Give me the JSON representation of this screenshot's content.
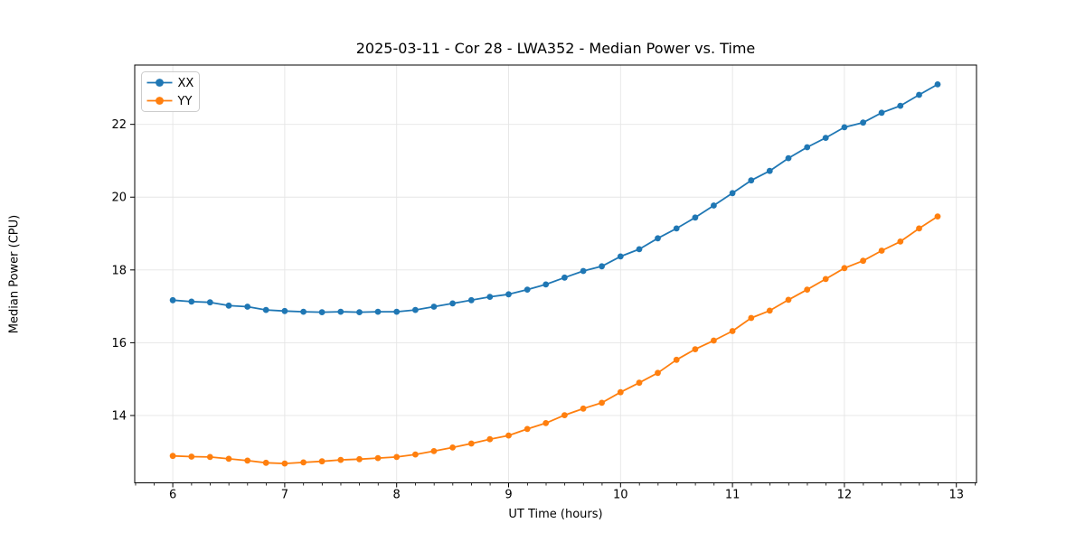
{
  "chart_data": {
    "type": "line",
    "title": "2025-03-11 - Cor 28 - LWA352 - Median Power vs. Time",
    "xlabel": "UT Time (hours)",
    "ylabel": "Median Power (CPU)",
    "xlim": [
      5.66,
      13.18
    ],
    "ylim": [
      12.15,
      23.63
    ],
    "x_ticks": [
      6,
      7,
      8,
      9,
      10,
      11,
      12,
      13
    ],
    "y_ticks": [
      14,
      16,
      18,
      20,
      22
    ],
    "x_minor_step": 0.1667,
    "grid": true,
    "legend_position": "upper-left",
    "background_color": "#ffffff",
    "grid_color": "#e5e5e5",
    "spine_color": "#000000",
    "x": [
      6.0,
      6.167,
      6.333,
      6.5,
      6.667,
      6.833,
      7.0,
      7.167,
      7.333,
      7.5,
      7.667,
      7.833,
      8.0,
      8.167,
      8.333,
      8.5,
      8.667,
      8.833,
      9.0,
      9.167,
      9.333,
      9.5,
      9.667,
      9.833,
      10.0,
      10.167,
      10.333,
      10.5,
      10.667,
      10.833,
      11.0,
      11.167,
      11.333,
      11.5,
      11.667,
      11.833,
      12.0,
      12.167,
      12.333,
      12.5,
      12.667,
      12.833
    ],
    "series": [
      {
        "name": "XX",
        "color": "#1f77b4",
        "values": [
          17.17,
          17.13,
          17.11,
          17.02,
          16.99,
          16.9,
          16.87,
          16.85,
          16.84,
          16.85,
          16.84,
          16.85,
          16.85,
          16.9,
          16.99,
          17.08,
          17.17,
          17.26,
          17.33,
          17.46,
          17.6,
          17.79,
          17.97,
          18.1,
          18.37,
          18.57,
          18.87,
          19.14,
          19.44,
          19.77,
          20.11,
          20.46,
          20.72,
          21.07,
          21.37,
          21.63,
          21.92,
          22.05,
          22.32,
          22.51,
          22.81,
          23.1
        ]
      },
      {
        "name": "YY",
        "color": "#ff7f0e",
        "values": [
          12.89,
          12.87,
          12.86,
          12.81,
          12.76,
          12.7,
          12.68,
          12.71,
          12.74,
          12.78,
          12.8,
          12.83,
          12.86,
          12.93,
          13.02,
          13.12,
          13.23,
          13.35,
          13.45,
          13.63,
          13.79,
          14.01,
          14.19,
          14.35,
          14.64,
          14.9,
          15.17,
          15.53,
          15.82,
          16.06,
          16.32,
          16.68,
          16.88,
          17.18,
          17.46,
          17.75,
          18.05,
          18.25,
          18.53,
          18.78,
          19.14,
          19.47
        ]
      }
    ]
  }
}
